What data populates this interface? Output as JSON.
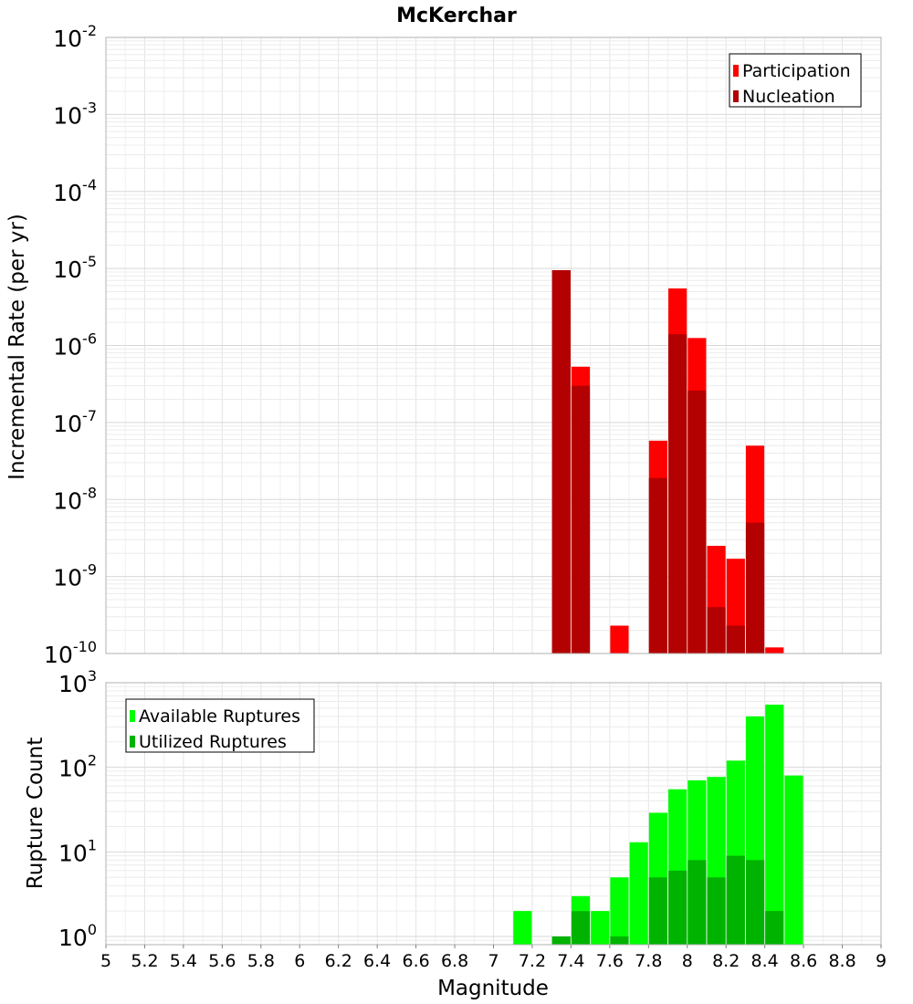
{
  "chart_data": [
    {
      "type": "bar",
      "title": "McKerchar",
      "xlabel": "",
      "ylabel": "Incremental Rate (per yr)",
      "yscale": "log",
      "xlim": [
        5,
        9
      ],
      "ylim": [
        1e-10,
        0.01
      ],
      "y_tick_labels": [
        "10",
        "10",
        "10",
        "10",
        "10",
        "10",
        "10",
        "10",
        "10"
      ],
      "y_tick_exponents": [
        "-10",
        "-9",
        "-8",
        "-7",
        "-6",
        "-5",
        "-4",
        "-3",
        "-2"
      ],
      "legend_position": "top-right",
      "grid": true,
      "bar_width": 0.095,
      "series": [
        {
          "name": "Participation",
          "color": "#ff0000",
          "x": [
            7.35,
            7.45,
            7.65,
            7.85,
            7.95,
            8.05,
            8.15,
            8.25,
            8.35,
            8.45
          ],
          "values": [
            9.5e-06,
            5.3e-07,
            2.3e-10,
            5.8e-08,
            5.5e-06,
            1.25e-06,
            2.5e-09,
            1.7e-09,
            5e-08,
            1.2e-10
          ]
        },
        {
          "name": "Nucleation",
          "color": "#b30000",
          "x": [
            7.35,
            7.45,
            7.85,
            7.95,
            8.05,
            8.15,
            8.25,
            8.35
          ],
          "values": [
            9.5e-06,
            3e-07,
            1.9e-08,
            1.4e-06,
            2.6e-07,
            4e-10,
            2.3e-10,
            5e-09
          ]
        }
      ]
    },
    {
      "type": "bar",
      "title": "",
      "xlabel": "Magnitude",
      "ylabel": "Rupture Count",
      "yscale": "log",
      "xlim": [
        5,
        9
      ],
      "ylim": [
        0.8,
        1000
      ],
      "x_tick_labels": [
        "5",
        "5.2",
        "5.4",
        "5.6",
        "5.8",
        "6",
        "6.2",
        "6.4",
        "6.6",
        "6.8",
        "7",
        "7.2",
        "7.4",
        "7.6",
        "7.8",
        "8",
        "8.2",
        "8.4",
        "8.6",
        "8.8",
        "9"
      ],
      "y_tick_labels": [
        "10",
        "10",
        "10",
        "10"
      ],
      "y_tick_exponents": [
        "0",
        "1",
        "2",
        "3"
      ],
      "legend_position": "top-left",
      "grid": true,
      "bar_width": 0.095,
      "series": [
        {
          "name": "Available Ruptures",
          "color": "#00ff00",
          "x": [
            7.15,
            7.35,
            7.45,
            7.55,
            7.65,
            7.75,
            7.85,
            7.95,
            8.05,
            8.15,
            8.25,
            8.35,
            8.45,
            8.55
          ],
          "values": [
            2,
            1,
            3,
            2,
            5,
            13,
            29,
            55,
            70,
            77,
            120,
            400,
            550,
            80
          ]
        },
        {
          "name": "Utilized Ruptures",
          "color": "#00b300",
          "x": [
            7.35,
            7.45,
            7.65,
            7.85,
            7.95,
            8.05,
            8.15,
            8.25,
            8.35,
            8.45
          ],
          "values": [
            1,
            2,
            1,
            5,
            6,
            8,
            5,
            9,
            8,
            2
          ]
        }
      ]
    }
  ]
}
